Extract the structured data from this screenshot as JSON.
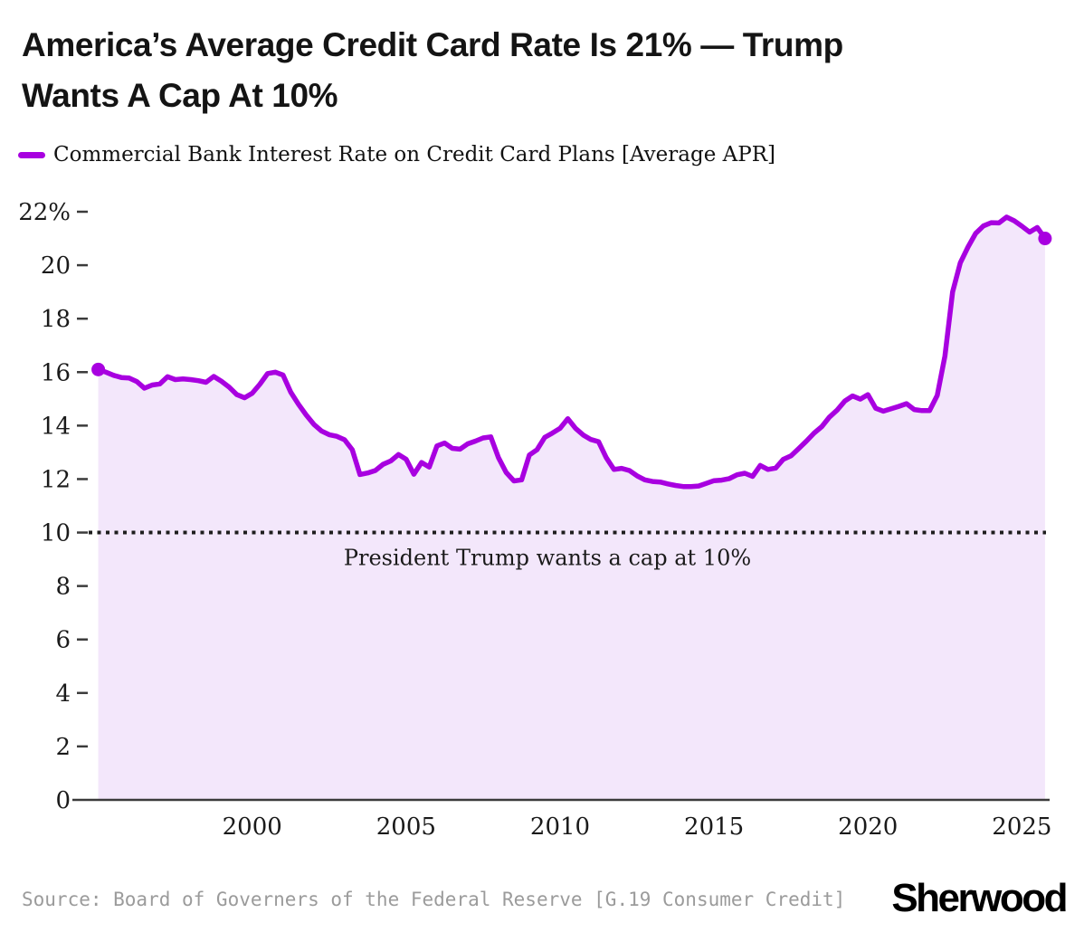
{
  "header": {
    "title_line1": "America’s Average Credit Card Rate Is 21% — Trump",
    "title_line2": "Wants A Cap At 10%"
  },
  "legend": {
    "label": "Commercial Bank Interest Rate on Credit Card Plans [Average APR]"
  },
  "footer": {
    "source": "Source: Board of Governers of the Federal Reserve [G.19 Consumer Credit]",
    "logo": "Sherwood"
  },
  "chart_data": {
    "type": "area",
    "title": "America’s Average Credit Card Rate Is 21% — Trump Wants A Cap At 10%",
    "xlabel": "",
    "ylabel": "",
    "grid": false,
    "legend_position": "top-left",
    "xlim": [
      1994.6,
      2025.9
    ],
    "ylim": [
      0,
      22
    ],
    "x_ticks": [
      2000,
      2005,
      2010,
      2015,
      2020,
      2025
    ],
    "y_ticks": [
      {
        "value": 0,
        "label": "0"
      },
      {
        "value": 2,
        "label": "2"
      },
      {
        "value": 4,
        "label": "4"
      },
      {
        "value": 6,
        "label": "6"
      },
      {
        "value": 8,
        "label": "8"
      },
      {
        "value": 10,
        "label": "10"
      },
      {
        "value": 12,
        "label": "12"
      },
      {
        "value": 14,
        "label": "14"
      },
      {
        "value": 16,
        "label": "16"
      },
      {
        "value": 18,
        "label": "18"
      },
      {
        "value": 20,
        "label": "20"
      },
      {
        "value": 22,
        "label": "22%"
      }
    ],
    "reference_line": {
      "value": 10,
      "label": "President Trump wants a cap at 10%",
      "style": "dotted"
    },
    "colors": {
      "line": "#A800E0",
      "fill": "#F3E7FB",
      "axis": "#3b3b3b",
      "reference": "#1e1e1e",
      "tick_text": "#1a1a1a"
    },
    "end_markers": {
      "first": true,
      "last": true
    },
    "series": [
      {
        "name": "Commercial Bank Interest Rate on Credit Card Plans [Average APR]",
        "unit": "%",
        "frequency": "quarterly",
        "x_start": 1995.0,
        "x_step": 0.25,
        "values": [
          16.1,
          16.0,
          15.88,
          15.8,
          15.78,
          15.65,
          15.4,
          15.52,
          15.56,
          15.83,
          15.72,
          15.75,
          15.72,
          15.68,
          15.62,
          15.84,
          15.66,
          15.44,
          15.16,
          15.04,
          15.21,
          15.55,
          15.95,
          16.0,
          15.89,
          15.25,
          14.8,
          14.4,
          14.05,
          13.8,
          13.66,
          13.6,
          13.47,
          13.1,
          12.17,
          12.23,
          12.32,
          12.55,
          12.68,
          12.92,
          12.74,
          12.18,
          12.62,
          12.45,
          13.24,
          13.35,
          13.15,
          13.12,
          13.32,
          13.42,
          13.54,
          13.58,
          12.8,
          12.25,
          11.93,
          11.97,
          12.9,
          13.1,
          13.56,
          13.72,
          13.9,
          14.26,
          13.9,
          13.65,
          13.48,
          13.4,
          12.8,
          12.36,
          12.4,
          12.32,
          12.12,
          11.97,
          11.91,
          11.89,
          11.82,
          11.76,
          11.72,
          11.72,
          11.74,
          11.84,
          11.94,
          11.96,
          12.02,
          12.16,
          12.22,
          12.1,
          12.51,
          12.36,
          12.41,
          12.74,
          12.87,
          13.14,
          13.42,
          13.72,
          13.96,
          14.32,
          14.58,
          14.92,
          15.11,
          14.99,
          15.16,
          14.65,
          14.54,
          14.63,
          14.72,
          14.82,
          14.6,
          14.56,
          14.56,
          15.13,
          16.6,
          19.0,
          20.09,
          20.68,
          21.19,
          21.47,
          21.59,
          21.58,
          21.8,
          21.66,
          21.46,
          21.24,
          21.41,
          21.0
        ]
      }
    ]
  }
}
